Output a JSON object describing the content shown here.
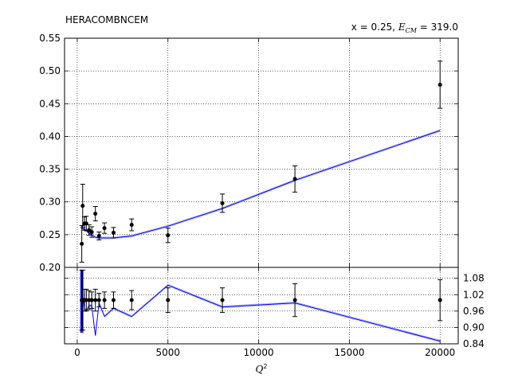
{
  "chart_data": {
    "type": "line",
    "title": "HERACOMBNCEM",
    "annotation": {
      "prefix": "x = 0.25, ",
      "e_symbol": "E",
      "e_subscript": "CM",
      "suffix": " = 319.0"
    },
    "xlabel": {
      "symbol": "Q",
      "superscript": "2"
    },
    "xlim": [
      -700,
      21000
    ],
    "xticks": [
      0,
      5000,
      10000,
      15000,
      20000
    ],
    "colors": {
      "theory": "#0000ff",
      "band": "#aab0f8",
      "data": "#000000"
    },
    "grid": true,
    "top_panel": {
      "ylim": [
        0.2,
        0.55
      ],
      "yticks": [
        "0.20",
        "0.25",
        "0.30",
        "0.35",
        "0.40",
        "0.45",
        "0.50",
        "0.55"
      ],
      "data_points": [
        {
          "x": 250,
          "y": 0.236,
          "err": 0.028
        },
        {
          "x": 300,
          "y": 0.294,
          "err": 0.033
        },
        {
          "x": 400,
          "y": 0.267,
          "err": 0.01
        },
        {
          "x": 500,
          "y": 0.267,
          "err": 0.011
        },
        {
          "x": 650,
          "y": 0.257,
          "err": 0.008
        },
        {
          "x": 800,
          "y": 0.254,
          "err": 0.008
        },
        {
          "x": 1000,
          "y": 0.282,
          "err": 0.011
        },
        {
          "x": 1200,
          "y": 0.248,
          "err": 0.006
        },
        {
          "x": 1500,
          "y": 0.26,
          "err": 0.008
        },
        {
          "x": 2000,
          "y": 0.253,
          "err": 0.008
        },
        {
          "x": 3000,
          "y": 0.265,
          "err": 0.009
        },
        {
          "x": 5000,
          "y": 0.249,
          "err": 0.011
        },
        {
          "x": 8000,
          "y": 0.298,
          "err": 0.014
        },
        {
          "x": 12000,
          "y": 0.335,
          "err": 0.02
        },
        {
          "x": 20000,
          "y": 0.479,
          "err": 0.036
        }
      ],
      "theory": [
        {
          "x": 250,
          "y": 0.262
        },
        {
          "x": 300,
          "y": 0.259
        },
        {
          "x": 400,
          "y": 0.258
        },
        {
          "x": 500,
          "y": 0.256
        },
        {
          "x": 650,
          "y": 0.252
        },
        {
          "x": 800,
          "y": 0.25
        },
        {
          "x": 1000,
          "y": 0.246
        },
        {
          "x": 1200,
          "y": 0.245
        },
        {
          "x": 1500,
          "y": 0.245
        },
        {
          "x": 2000,
          "y": 0.245
        },
        {
          "x": 3000,
          "y": 0.248
        },
        {
          "x": 5000,
          "y": 0.263
        },
        {
          "x": 8000,
          "y": 0.29
        },
        {
          "x": 12000,
          "y": 0.333
        },
        {
          "x": 20000,
          "y": 0.409
        }
      ],
      "band_half_width": 0.002
    },
    "ratio_panel": {
      "ylim": [
        0.84,
        1.12
      ],
      "yticks": [
        "0.84",
        "0.90",
        "0.96",
        "1.02",
        "1.08"
      ],
      "data_points": [
        {
          "x": 250,
          "y": 1.0,
          "err": 0.11
        },
        {
          "x": 300,
          "y": 1.0,
          "err": 0.11
        },
        {
          "x": 400,
          "y": 1.0,
          "err": 0.04
        },
        {
          "x": 500,
          "y": 1.0,
          "err": 0.04
        },
        {
          "x": 650,
          "y": 1.0,
          "err": 0.035
        },
        {
          "x": 800,
          "y": 1.0,
          "err": 0.03
        },
        {
          "x": 1000,
          "y": 1.0,
          "err": 0.04
        },
        {
          "x": 1200,
          "y": 1.0,
          "err": 0.025
        },
        {
          "x": 1500,
          "y": 1.0,
          "err": 0.03
        },
        {
          "x": 2000,
          "y": 1.0,
          "err": 0.03
        },
        {
          "x": 3000,
          "y": 1.0,
          "err": 0.035
        },
        {
          "x": 5000,
          "y": 1.0,
          "err": 0.045
        },
        {
          "x": 8000,
          "y": 1.0,
          "err": 0.045
        },
        {
          "x": 12000,
          "y": 1.0,
          "err": 0.06
        },
        {
          "x": 20000,
          "y": 1.0,
          "err": 0.075
        }
      ],
      "theory": [
        {
          "x": 250,
          "y": 1.03
        },
        {
          "x": 280,
          "y": 0.91
        },
        {
          "x": 320,
          "y": 1.01
        },
        {
          "x": 400,
          "y": 0.97
        },
        {
          "x": 500,
          "y": 0.96
        },
        {
          "x": 650,
          "y": 0.98
        },
        {
          "x": 800,
          "y": 0.98
        },
        {
          "x": 1000,
          "y": 0.87
        },
        {
          "x": 1200,
          "y": 0.99
        },
        {
          "x": 1500,
          "y": 0.94
        },
        {
          "x": 2000,
          "y": 0.97
        },
        {
          "x": 3000,
          "y": 0.94
        },
        {
          "x": 5000,
          "y": 1.055
        },
        {
          "x": 8000,
          "y": 0.975
        },
        {
          "x": 12000,
          "y": 0.99
        },
        {
          "x": 20000,
          "y": 0.85
        }
      ],
      "band_half_width": 0.005,
      "spike_band": {
        "x": 250,
        "low": 0.88,
        "high": 1.11
      }
    }
  }
}
